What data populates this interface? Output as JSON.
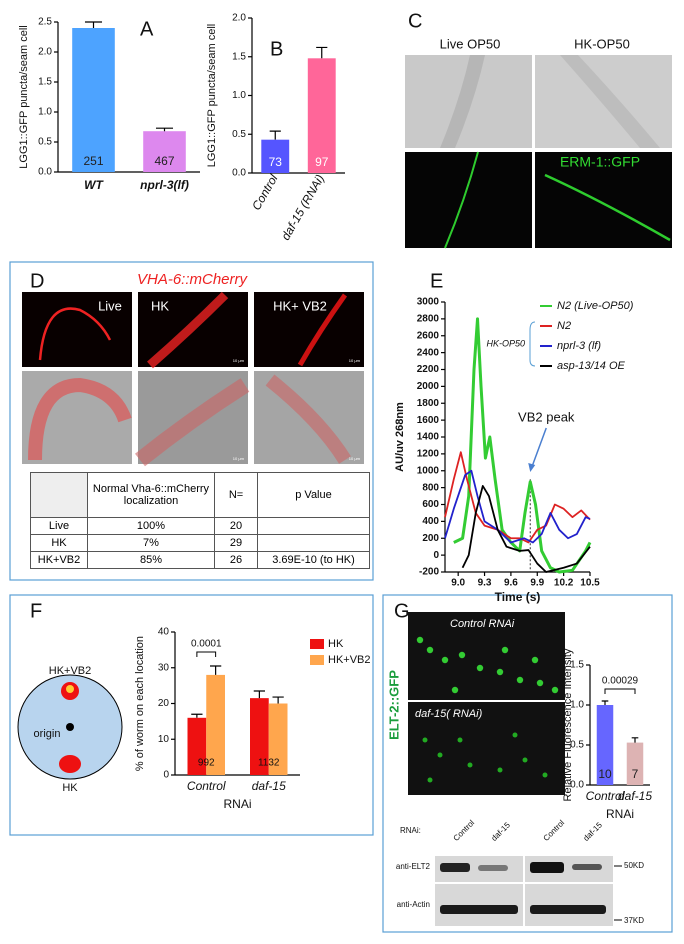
{
  "chart_data": [
    {
      "type": "bar",
      "panel": "A",
      "ylabel": "LGG1::GFP puncta/seam cell",
      "categories": [
        "WT",
        "nprl-3(lf)"
      ],
      "values": [
        2.4,
        0.68
      ],
      "errors": [
        0.1,
        0.05
      ],
      "colors": [
        "#4da3ff",
        "#dd88ee"
      ],
      "bar_labels": [
        251,
        467
      ],
      "ylim": [
        0,
        2.5
      ],
      "yticks": [
        {
          "value": 0,
          "label": "0.0"
        },
        0.5,
        {
          "value": 1,
          "label": "1.0"
        },
        1.5,
        {
          "value": 2,
          "label": "2.0"
        },
        2.5
      ]
    },
    {
      "type": "bar",
      "panel": "B",
      "ylabel": "LGG1::GFP puncta/seam cell",
      "categories": [
        "Control",
        "daf-15 (RNAi)"
      ],
      "values": [
        0.43,
        1.48
      ],
      "errors": [
        0.11,
        0.14
      ],
      "colors": [
        "#5555ff",
        "#ff6699"
      ],
      "bar_labels": [
        73,
        97
      ],
      "ylim": [
        0,
        2
      ],
      "yticks": [
        {
          "value": 0,
          "label": "0.0"
        },
        0.5,
        {
          "value": 1,
          "label": "1.0"
        },
        1.5,
        {
          "value": 2,
          "label": "2.0"
        }
      ]
    },
    {
      "type": "line",
      "panel": "E",
      "ylabel": "AU/uv 268nm",
      "xlabel": "Time (s)",
      "legend_group": "HK-OP50",
      "annotation": {
        "text": "VB2 peak",
        "x": 9.82
      },
      "series": [
        {
          "name": "N2 (Live-OP50)",
          "color": "#33cc33",
          "x": [
            8.95,
            9.05,
            9.12,
            9.18,
            9.22,
            9.26,
            9.31,
            9.36,
            9.42,
            9.5,
            9.6,
            9.7,
            9.76,
            9.82,
            9.88,
            9.95,
            10.05,
            10.15,
            10.3,
            10.45,
            10.5
          ],
          "values": [
            150,
            200,
            700,
            2200,
            2800,
            2000,
            1150,
            1400,
            900,
            300,
            150,
            50,
            500,
            870,
            600,
            50,
            -150,
            -200,
            -180,
            50,
            150
          ]
        },
        {
          "name": "N2",
          "color": "#dd2222",
          "x": [
            8.85,
            8.95,
            9.03,
            9.1,
            9.2,
            9.3,
            9.45,
            9.6,
            9.7,
            9.8,
            9.9,
            10.0,
            10.1,
            10.2,
            10.3,
            10.4,
            10.5
          ],
          "values": [
            450,
            900,
            1220,
            900,
            500,
            350,
            300,
            200,
            200,
            150,
            300,
            350,
            600,
            550,
            450,
            530,
            420
          ]
        },
        {
          "name": "nprl-3 (lf)",
          "color": "#2222cc",
          "x": [
            8.85,
            8.95,
            9.08,
            9.15,
            9.22,
            9.3,
            9.45,
            9.6,
            9.75,
            9.85,
            9.95,
            10.05,
            10.15,
            10.25,
            10.35,
            10.45,
            10.5
          ],
          "values": [
            200,
            550,
            950,
            1000,
            700,
            400,
            300,
            150,
            200,
            150,
            250,
            500,
            300,
            200,
            250,
            450,
            430
          ]
        },
        {
          "name": "asp-13/14 OE",
          "color": "#000000",
          "x": [
            9.05,
            9.12,
            9.2,
            9.28,
            9.35,
            9.45,
            9.55,
            9.7,
            9.8,
            9.9,
            10.0,
            10.2,
            10.35,
            10.5
          ],
          "values": [
            -150,
            0,
            500,
            820,
            700,
            300,
            100,
            50,
            60,
            -100,
            -200,
            -150,
            -100,
            100
          ]
        }
      ],
      "xlim": [
        8.85,
        10.5
      ],
      "xticks": [
        {
          "value": 9,
          "label": "9.0"
        },
        9.3,
        9.6,
        9.9,
        10.2,
        10.5
      ],
      "ylim": [
        -200,
        3000
      ],
      "yticks": [
        -200,
        0,
        200,
        400,
        600,
        800,
        1000,
        1200,
        1400,
        1600,
        1800,
        2000,
        2200,
        2400,
        2600,
        2800,
        3000
      ]
    },
    {
      "type": "bar",
      "panel": "F",
      "ylabel": "% of worm on each location",
      "xlabel": "RNAi",
      "categories": [
        "Control",
        "daf-15"
      ],
      "group_labels": [
        992,
        1132
      ],
      "significance": "0.0001",
      "series": [
        {
          "name": "HK",
          "color": "#ee1111",
          "values": [
            16,
            21.5
          ],
          "errors": [
            1,
            2
          ]
        },
        {
          "name": "HK+VB2",
          "color": "#ffa64d",
          "values": [
            28,
            20
          ],
          "errors": [
            2.5,
            1.8
          ]
        }
      ],
      "ylim": [
        0,
        40
      ],
      "yticks": [
        0,
        10,
        20,
        30,
        40
      ]
    },
    {
      "type": "bar",
      "panel": "G",
      "ylabel": "Relative Fluorescence Intensity",
      "xlabel": "RNAi",
      "categories": [
        "Control",
        "daf-15"
      ],
      "values": [
        1.0,
        0.53
      ],
      "errors": [
        0.05,
        0.06
      ],
      "colors": [
        "#6666ff",
        "#ddb3b3"
      ],
      "bar_labels": [
        10,
        7
      ],
      "significance": "0.00029",
      "ylim": [
        0,
        1.5
      ],
      "yticks": [
        {
          "value": 0,
          "label": "0.0"
        },
        0.5,
        {
          "value": 1,
          "label": "1.0"
        },
        1.5
      ]
    }
  ],
  "panel_c": {
    "letter": "C",
    "columns": [
      "Live OP50",
      "HK-OP50"
    ],
    "marker": "ERM-1::GFP"
  },
  "panel_d": {
    "letter": "D",
    "title": "VHA-6::mCherry",
    "columns": [
      "Live",
      "HK",
      "HK+ VB2"
    ],
    "scale_bar": "10 μm",
    "table": {
      "columns": [
        "Normal Vha-6::mCherry localization",
        "N=",
        "p Value"
      ],
      "rows": [
        {
          "name": "Live",
          "normal": "100%",
          "n": 20
        },
        {
          "name": "HK",
          "normal": "7%",
          "n": 29
        },
        {
          "name": "HK+VB2",
          "normal": "85%",
          "n": 26,
          "p": "3.69E-10 (to HK)"
        }
      ]
    }
  },
  "panel_f": {
    "diagram": {
      "top": "HK+VB2",
      "center": "origin",
      "bottom": "HK"
    }
  },
  "panel_g": {
    "marker": "ELT-2::GFP",
    "images": [
      "Control RNAi",
      "daf-15( RNAi)"
    ],
    "blot": {
      "rnai": "RNAi:",
      "lanes": [
        "Control",
        "daf-15",
        "Control",
        "daf-15"
      ],
      "rows": [
        "anti-ELT2",
        "anti-Actin"
      ],
      "sizes": [
        "50KD",
        "37KD"
      ]
    }
  }
}
